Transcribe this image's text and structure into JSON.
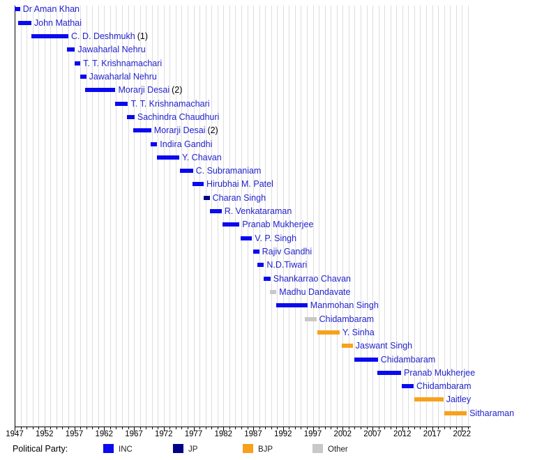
{
  "chart_data": {
    "type": "bar",
    "subtype": "gantt-timeline",
    "title": "",
    "xlabel": "",
    "ylabel": "",
    "x_axis": {
      "range_start": 1947,
      "range_end": 2023,
      "tick_labels": [
        "1947",
        "1952",
        "1957",
        "1962",
        "1967",
        "1972",
        "1977",
        "1982",
        "1987",
        "1992",
        "1997",
        "2002",
        "2007",
        "2012",
        "2017",
        "2022"
      ],
      "minor_tick_interval_years": 1,
      "major_tick_interval_years": 5,
      "gridlines": "yearly"
    },
    "ministers": [
      {
        "name": "Dr Aman Khan",
        "suffix": "",
        "start": 1947.0,
        "end": 1947.9,
        "party": "INC"
      },
      {
        "name": "John Mathai",
        "suffix": "",
        "start": 1947.6,
        "end": 1949.8,
        "party": "INC"
      },
      {
        "name": "C. D. Deshmukh",
        "suffix": "(1)",
        "start": 1949.8,
        "end": 1956.0,
        "party": "INC"
      },
      {
        "name": "Jawaharlal Nehru",
        "suffix": "",
        "start": 1955.8,
        "end": 1957.1,
        "party": "INC"
      },
      {
        "name": "T. T. Krishnamachari",
        "suffix": "",
        "start": 1957.0,
        "end": 1958.0,
        "party": "INC"
      },
      {
        "name": "Jawaharlal Nehru",
        "suffix": "",
        "start": 1958.0,
        "end": 1959.0,
        "party": "INC"
      },
      {
        "name": "Morarji Desai",
        "suffix": "(2)",
        "start": 1958.8,
        "end": 1963.9,
        "party": "INC"
      },
      {
        "name": "T. T. Krishnamachari",
        "suffix": "",
        "start": 1963.8,
        "end": 1966.0,
        "party": "INC"
      },
      {
        "name": "Sachindra Chaudhuri",
        "suffix": "",
        "start": 1965.8,
        "end": 1967.1,
        "party": "INC"
      },
      {
        "name": "Morarji Desai",
        "suffix": "(2)",
        "start": 1966.9,
        "end": 1969.9,
        "party": "INC"
      },
      {
        "name": "Indira Gandhi",
        "suffix": "",
        "start": 1969.8,
        "end": 1970.9,
        "party": "INC"
      },
      {
        "name": "Y. Chavan",
        "suffix": "",
        "start": 1970.9,
        "end": 1974.6,
        "party": "INC"
      },
      {
        "name": "C. Subramaniam",
        "suffix": "",
        "start": 1974.7,
        "end": 1976.9,
        "party": "INC"
      },
      {
        "name": "Hirubhai M. Patel",
        "suffix": "",
        "start": 1976.8,
        "end": 1978.7,
        "party": "INC"
      },
      {
        "name": "Charan Singh",
        "suffix": "",
        "start": 1978.7,
        "end": 1979.7,
        "party": "JP"
      },
      {
        "name": "R. Venkataraman",
        "suffix": "",
        "start": 1979.7,
        "end": 1981.7,
        "party": "INC"
      },
      {
        "name": "Pranab Mukherjee",
        "suffix": "",
        "start": 1981.8,
        "end": 1984.7,
        "party": "INC"
      },
      {
        "name": "V. P. Singh",
        "suffix": "",
        "start": 1984.9,
        "end": 1986.8,
        "party": "INC"
      },
      {
        "name": "Rajiv Gandhi",
        "suffix": "",
        "start": 1987.0,
        "end": 1988.0,
        "party": "INC"
      },
      {
        "name": "N.D.Tiwari",
        "suffix": "",
        "start": 1987.7,
        "end": 1988.8,
        "party": "INC"
      },
      {
        "name": "Shankarrao Chavan",
        "suffix": "",
        "start": 1988.8,
        "end": 1989.9,
        "party": "INC"
      },
      {
        "name": "Madhu Dandavate",
        "suffix": "",
        "start": 1989.8,
        "end": 1990.9,
        "party": "Other"
      },
      {
        "name": "Manmohan Singh",
        "suffix": "",
        "start": 1990.9,
        "end": 1996.1,
        "party": "INC"
      },
      {
        "name": "Chidambaram",
        "suffix": "",
        "start": 1995.7,
        "end": 1997.6,
        "party": "Other"
      },
      {
        "name": "Y. Sinha",
        "suffix": "",
        "start": 1997.8,
        "end": 2001.5,
        "party": "BJP"
      },
      {
        "name": "Jaswant Singh",
        "suffix": "",
        "start": 2001.9,
        "end": 2003.7,
        "party": "BJP"
      },
      {
        "name": "Chidambaram",
        "suffix": "",
        "start": 2004.0,
        "end": 2007.9,
        "party": "INC"
      },
      {
        "name": "Pranab Mukherjee",
        "suffix": "",
        "start": 2007.8,
        "end": 2011.8,
        "party": "INC"
      },
      {
        "name": "Chidambaram",
        "suffix": "",
        "start": 2011.9,
        "end": 2013.9,
        "party": "INC"
      },
      {
        "name": "Jaitley",
        "suffix": "",
        "start": 2014.0,
        "end": 2018.9,
        "party": "BJP"
      },
      {
        "name": "Sitharaman",
        "suffix": "",
        "start": 2019.0,
        "end": 2022.8,
        "party": "BJP"
      }
    ],
    "legend": {
      "title": "Political Party:",
      "entries": [
        {
          "label": "INC",
          "party": "INC"
        },
        {
          "label": "JP",
          "party": "JP"
        },
        {
          "label": "BJP",
          "party": "BJP"
        },
        {
          "label": "Other",
          "party": "Other"
        }
      ],
      "position": "bottom"
    },
    "colors": {
      "INC": "#0a0af0",
      "JP": "#00008b",
      "BJP": "#f7a11c",
      "Other": "#c8c8c8",
      "name_text": "#2222cc",
      "suffix_text": "#000000",
      "gridline": "#dddddd",
      "axis": "#000000"
    }
  }
}
